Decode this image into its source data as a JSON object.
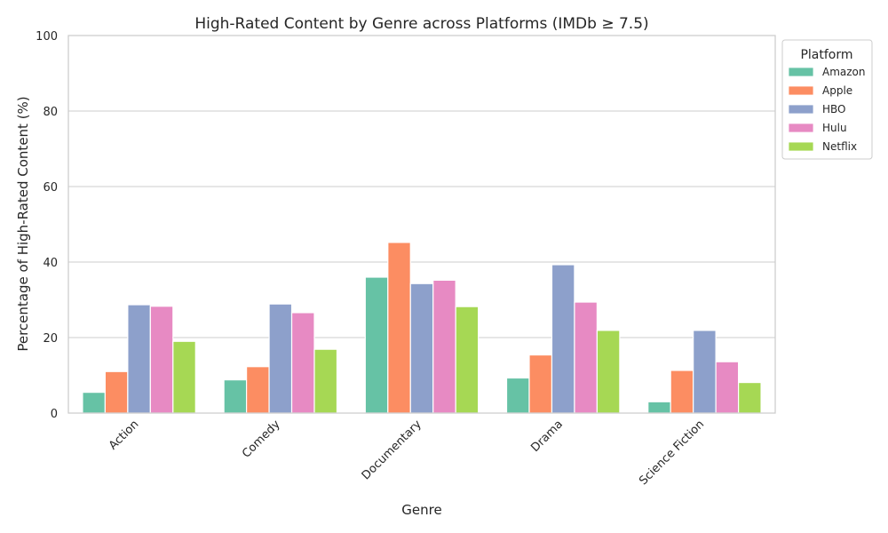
{
  "chart_data": {
    "type": "bar",
    "title": "High-Rated Content by Genre across Platforms (IMDb ≥ 7.5)",
    "xlabel": "Genre",
    "ylabel": "Percentage of High-Rated Content (%)",
    "ylim": [
      0,
      100
    ],
    "yticks": [
      "0",
      "20",
      "40",
      "60",
      "80",
      "100"
    ],
    "grid": "horizontal",
    "legend_title": "Platform",
    "legend_position": "top-right outside",
    "categories": [
      "Action",
      "Comedy",
      "Documentary",
      "Drama",
      "Science Fiction"
    ],
    "series": [
      {
        "name": "Amazon",
        "color": "#66c2a5",
        "values": [
          5.5,
          8.8,
          36.0,
          9.3,
          3.0
        ]
      },
      {
        "name": "Apple",
        "color": "#fc8d62",
        "values": [
          11.0,
          12.3,
          45.2,
          15.4,
          11.3
        ]
      },
      {
        "name": "HBO",
        "color": "#8da0cb",
        "values": [
          28.7,
          28.9,
          34.3,
          39.3,
          21.9
        ]
      },
      {
        "name": "Hulu",
        "color": "#e78ac3",
        "values": [
          28.3,
          26.6,
          35.2,
          29.4,
          13.6
        ]
      },
      {
        "name": "Netflix",
        "color": "#a6d854",
        "values": [
          19.0,
          16.9,
          28.2,
          21.9,
          8.1
        ]
      }
    ]
  }
}
